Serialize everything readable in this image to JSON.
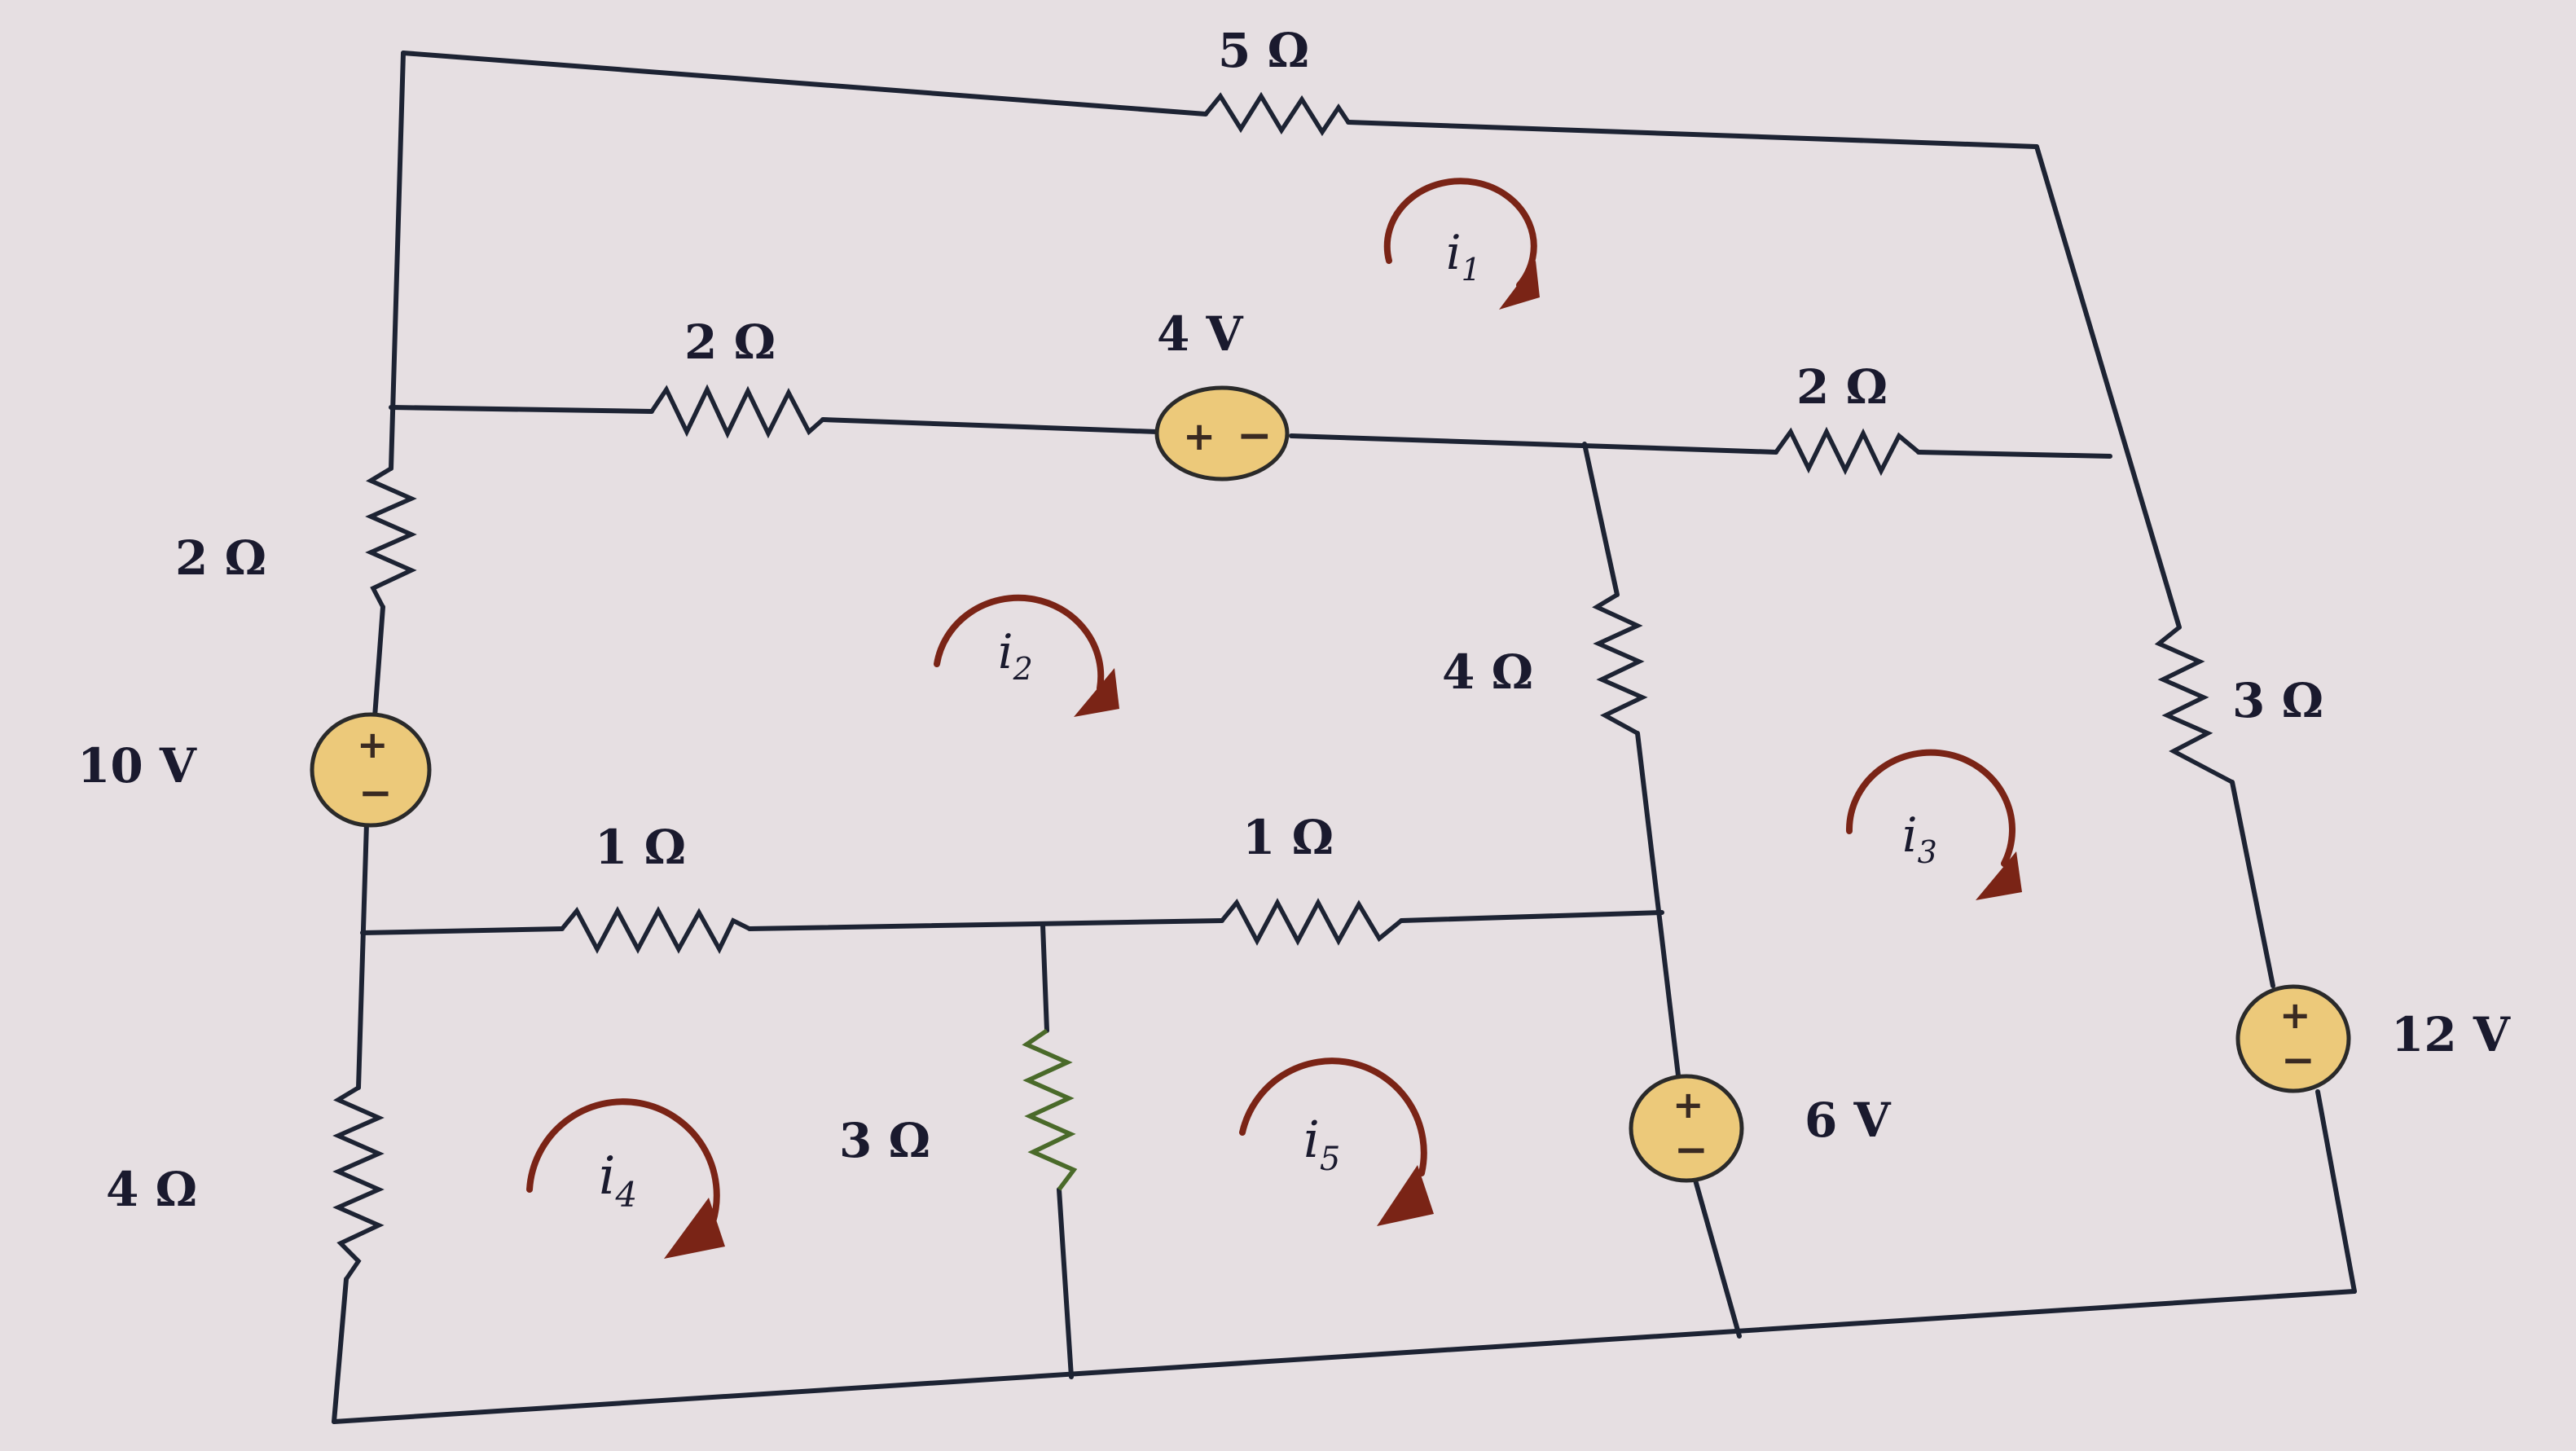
{
  "resistors": {
    "top_5": "5 Ω",
    "upper_left_2": "2 Ω",
    "upper_right_2": "2 Ω",
    "left_2": "2 Ω",
    "middle_4": "4 Ω",
    "right_3": "3 Ω",
    "left_1": "1 Ω",
    "middle_1": "1 Ω",
    "bottom_left_4": "4 Ω",
    "bottom_3": "3 Ω"
  },
  "sources": {
    "v4": {
      "label": "4 V",
      "plus": "+",
      "minus": "−"
    },
    "v10": {
      "label": "10 V",
      "plus": "+",
      "minus": "−"
    },
    "v6": {
      "label": "6 V",
      "plus": "+",
      "minus": "−"
    },
    "v12": {
      "label": "12 V",
      "plus": "+",
      "minus": "−"
    }
  },
  "mesh_currents": {
    "i1": {
      "base": "i",
      "sub": "1"
    },
    "i2": {
      "base": "i",
      "sub": "2"
    },
    "i3": {
      "base": "i",
      "sub": "3"
    },
    "i4": {
      "base": "i",
      "sub": "4"
    },
    "i5": {
      "base": "i",
      "sub": "5"
    }
  },
  "colors": {
    "wire": "#1d2333",
    "source_fill": "#ecc97a",
    "arrow": "#7a2416",
    "paper": "#e6dfe2"
  }
}
